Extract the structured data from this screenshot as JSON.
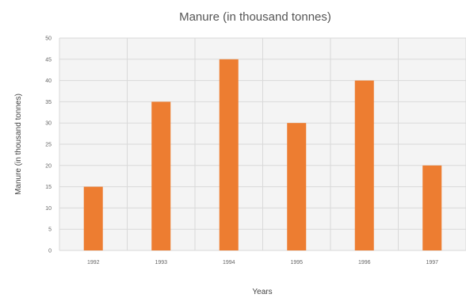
{
  "chart_data": {
    "type": "bar",
    "title": "Manure (in thousand tonnes)",
    "xlabel": "Years",
    "ylabel": "Manure (in thousand tonnes)",
    "categories": [
      "1992",
      "1993",
      "1994",
      "1995",
      "1996",
      "1997"
    ],
    "values": [
      15,
      35,
      45,
      30,
      40,
      20
    ],
    "ylim": [
      0,
      50
    ],
    "yticks": [
      "0",
      "5",
      "10",
      "15",
      "20",
      "25",
      "30",
      "35",
      "40",
      "45",
      "50"
    ],
    "grid": true,
    "bar_color": "#ed7d31",
    "grid_color": "#d9d9d9",
    "plot_background": "#f4f4f4"
  }
}
